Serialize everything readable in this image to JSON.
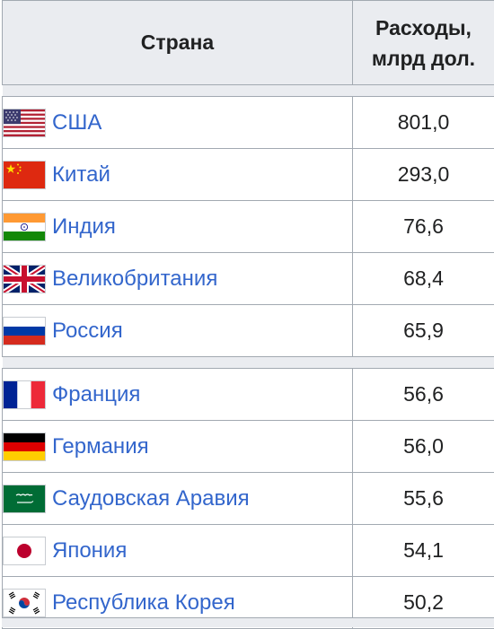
{
  "table": {
    "header": {
      "country": "Страна",
      "value_line1": "Расходы,",
      "value_line2": "млрд дол."
    },
    "rows": [
      {
        "flag": "usa-flag-icon",
        "country": "США",
        "value": "801,0"
      },
      {
        "flag": "china-flag-icon",
        "country": "Китай",
        "value": "293,0"
      },
      {
        "flag": "india-flag-icon",
        "country": "Индия",
        "value": "76,6"
      },
      {
        "flag": "uk-flag-icon",
        "country": "Великобритания",
        "value": "68,4"
      },
      {
        "flag": "russia-flag-icon",
        "country": "Россия",
        "value": "65,9"
      },
      {
        "flag": "france-flag-icon",
        "country": "Франция",
        "value": "56,6"
      },
      {
        "flag": "germany-flag-icon",
        "country": "Германия",
        "value": "56,0"
      },
      {
        "flag": "saudi-arabia-flag-icon",
        "country": "Саудовская Аравия",
        "value": "55,6"
      },
      {
        "flag": "japan-flag-icon",
        "country": "Япония",
        "value": "54,1"
      },
      {
        "flag": "south-korea-flag-icon",
        "country": "Республика Корея",
        "value": "50,2"
      }
    ]
  },
  "colors": {
    "link": "#3366cc",
    "header_bg": "#eaecf0",
    "border": "#a2a9b1"
  }
}
